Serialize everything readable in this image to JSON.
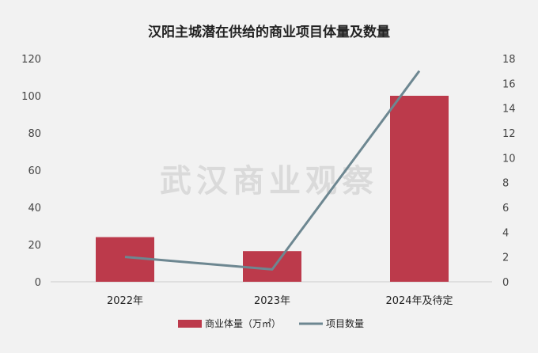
{
  "chart_data": {
    "type": "bar+line",
    "title": "汉阳主城潜在供给的商业项目体量及数量",
    "categories": [
      "2022年",
      "2023年",
      "2024年及待定"
    ],
    "series": [
      {
        "name": "商业体量（万㎡）",
        "type": "bar",
        "axis": "left",
        "values": [
          24,
          16.5,
          100
        ]
      },
      {
        "name": "项目数量",
        "type": "line",
        "axis": "right",
        "values": [
          2,
          1,
          17
        ]
      }
    ],
    "y_left": {
      "min": 0,
      "max": 120,
      "ticks": [
        0,
        20,
        40,
        60,
        80,
        100,
        120
      ]
    },
    "y_right": {
      "min": 0,
      "max": 18,
      "ticks": [
        0,
        2,
        4,
        6,
        8,
        10,
        12,
        14,
        16,
        18
      ]
    },
    "grid": false,
    "legend": "bottom",
    "colors": {
      "bar": "#bc3a4b",
      "line": "#6d8791",
      "background": "#f2f2f2"
    },
    "watermark": "武汉商业观察"
  }
}
